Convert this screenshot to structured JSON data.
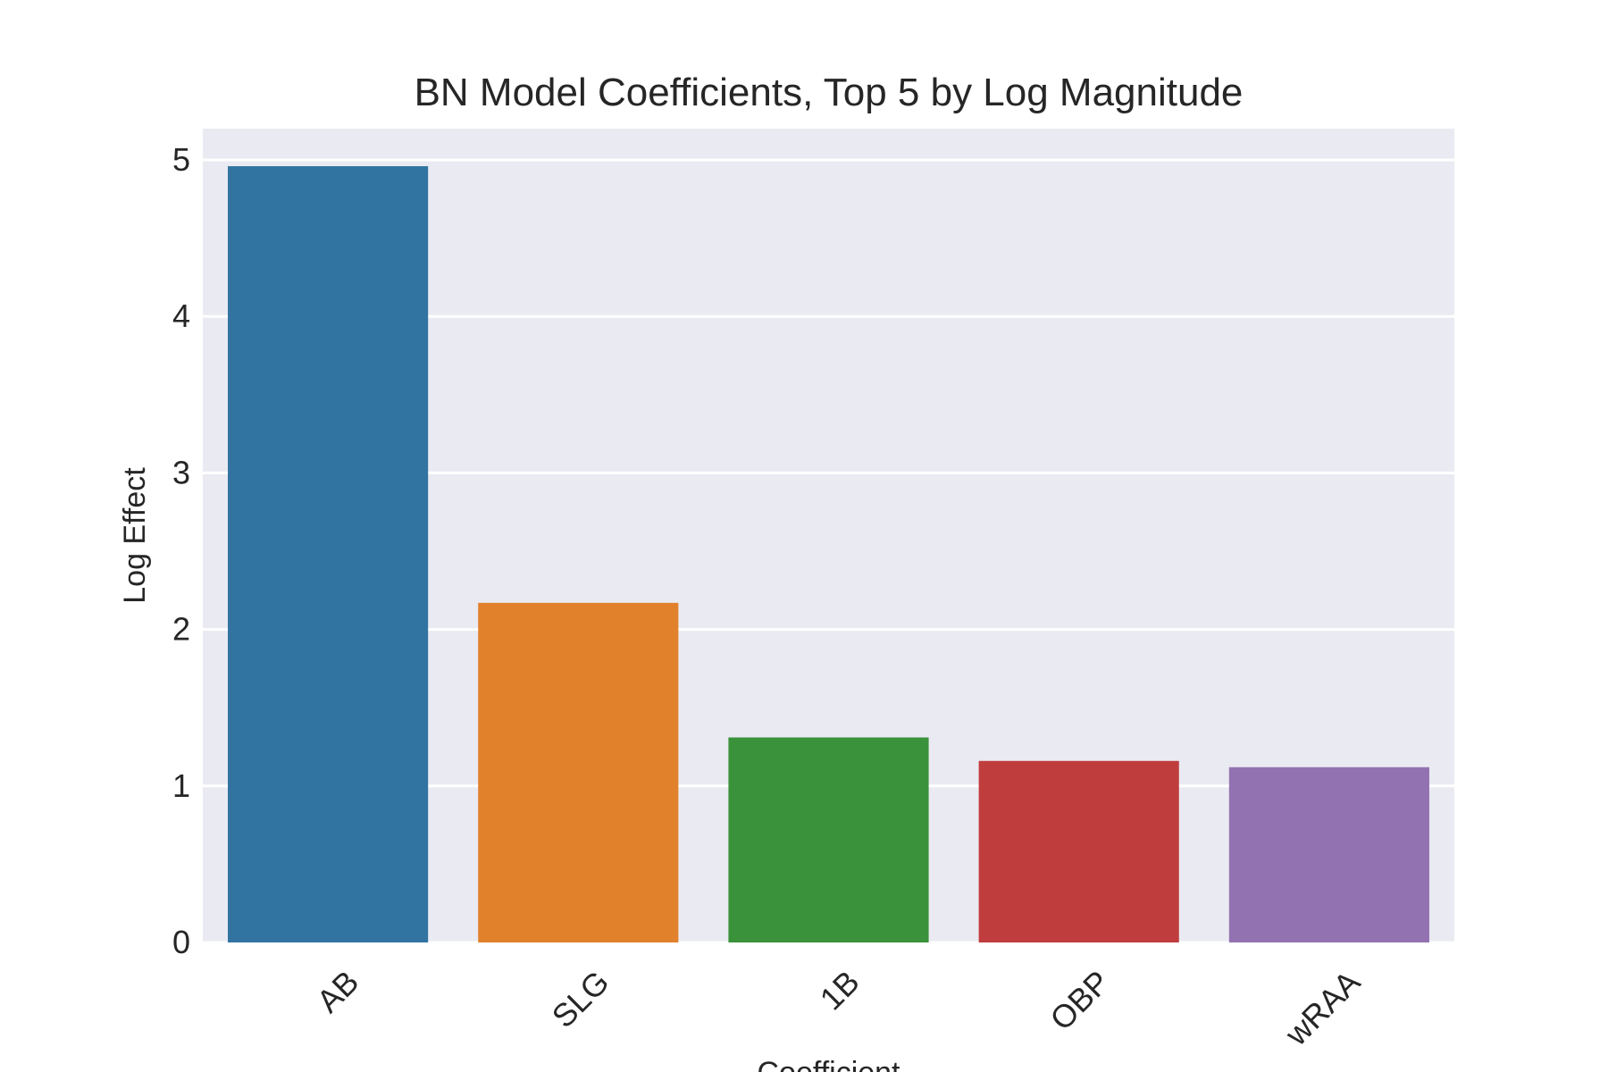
{
  "chart_data": {
    "type": "bar",
    "title": "BN Model Coefficients, Top 5 by Log Magnitude",
    "xlabel": "Coefficient",
    "ylabel": "Log Effect",
    "categories": [
      "AB",
      "SLG",
      "1B",
      "OBP",
      "wRAA"
    ],
    "values": [
      4.96,
      2.17,
      1.31,
      1.16,
      1.12
    ],
    "colors": [
      "#3274a1",
      "#e1812c",
      "#3a923a",
      "#c03d3e",
      "#9372b2"
    ],
    "ylim": [
      0,
      5.2
    ],
    "yticks": [
      0,
      1,
      2,
      3,
      4,
      5
    ],
    "grid": true,
    "background_color": "#eaeaf2",
    "grid_color": "#ffffff"
  }
}
